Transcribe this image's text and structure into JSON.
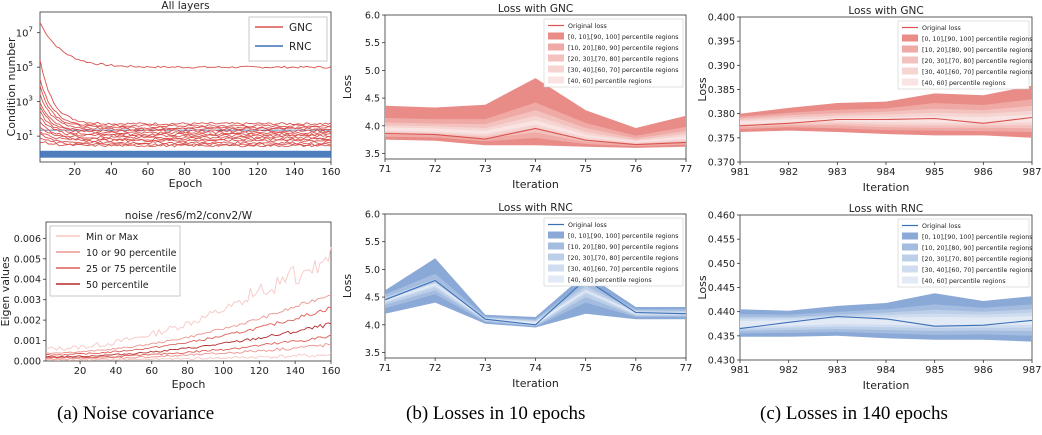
{
  "captions": [
    "(a) Noise covariance",
    "(b) Losses in 10 epochs",
    "(c) Losses in 140 epochs"
  ],
  "chart_data": [
    {
      "id": "cond",
      "type": "line",
      "title": "All layers",
      "xlabel": "Epoch",
      "ylabel": "Condition number",
      "xlim": [
        1,
        160
      ],
      "ylim_log10": [
        -0.5,
        8.2
      ],
      "yscale": "log",
      "xticks": [
        20,
        40,
        60,
        80,
        100,
        120,
        140,
        160
      ],
      "yticks": [
        {
          "exp": 1,
          "label": "10"
        },
        {
          "exp": 3,
          "label": "10"
        },
        {
          "exp": 5,
          "label": "10"
        },
        {
          "exp": 7,
          "label": "10"
        }
      ],
      "legend_position": "top-right",
      "legend": [
        {
          "name": "GNC",
          "color": "#d9534f"
        },
        {
          "name": "RNC",
          "color": "#3b6fb6"
        }
      ],
      "series_start_log10": [
        7.6,
        5.4,
        4.3,
        3.9,
        3.4,
        3.0,
        2.7,
        2.4,
        2.1,
        1.8,
        1.5,
        1.3,
        1.1,
        0.9,
        0.7
      ],
      "series_end_log10": [
        5.0,
        1.72,
        1.6,
        1.5,
        1.42,
        1.3,
        1.2,
        1.1,
        1.03,
        0.92,
        0.83,
        0.75,
        0.62,
        0.52,
        0.45
      ],
      "rnc_band_log10": [
        -0.25,
        0.15
      ],
      "rnc_line_log10": 1.35
    },
    {
      "id": "eig",
      "type": "line",
      "title": "noise /res6/m2/conv2/W",
      "xlabel": "Epoch",
      "ylabel": "Eigen values",
      "xlim": [
        1,
        160
      ],
      "ylim": [
        0,
        0.0068
      ],
      "xticks": [
        20,
        40,
        60,
        80,
        100,
        120,
        140,
        160
      ],
      "yticks": [
        "0.000",
        "0.001",
        "0.002",
        "0.003",
        "0.004",
        "0.005",
        "0.006"
      ],
      "legend_position": "top-left",
      "legend": [
        {
          "name": "Min or Max",
          "color": "#f6c8c4"
        },
        {
          "name": "10 or 90 percentile",
          "color": "#ec9590"
        },
        {
          "name": "25 or 75 percentile",
          "color": "#de5e58"
        },
        {
          "name": "50 percentile",
          "color": "#b52b2b"
        }
      ],
      "series_end_values": [
        0.0053,
        0.0033,
        0.0026,
        0.0018,
        0.0012,
        0.0008,
        0.0003
      ],
      "series_start_values": [
        0.0006,
        0.0004,
        0.0003,
        0.0002,
        0.00015,
        0.0001,
        5e-05
      ]
    },
    {
      "id": "gnc10",
      "type": "area",
      "title": "Loss with GNC",
      "xlabel": "Iteration",
      "ylabel": "Loss",
      "x": [
        71,
        72,
        73,
        74,
        75,
        76,
        77
      ],
      "xlim": [
        71,
        77
      ],
      "ylim": [
        3.4,
        6.0
      ],
      "yticks": [
        "3.5",
        "4.0",
        "4.5",
        "5.0",
        "5.5",
        "6.0"
      ],
      "color": "#d9534f",
      "band_colors": [
        "#e98b87",
        "#efaaa6",
        "#f3c2bf",
        "#f6d4d2",
        "#f9e4e3"
      ],
      "legend": [
        "Original loss",
        "[0, 10],[90, 100] percentile regions",
        "[10, 20],[80, 90] percentile regions",
        "[20, 30],[70, 80] percentile regions",
        "[30, 40],[60, 70] percentile regions",
        "[40, 60] percentile regions"
      ],
      "original": [
        3.86,
        3.84,
        3.76,
        3.95,
        3.74,
        3.66,
        3.7
      ],
      "bands": [
        {
          "low": [
            3.75,
            3.73,
            3.65,
            3.65,
            3.62,
            3.6,
            3.62
          ],
          "high": [
            4.36,
            4.33,
            4.38,
            4.86,
            4.28,
            3.96,
            4.18
          ]
        },
        {
          "low": [
            3.8,
            3.79,
            3.72,
            3.78,
            3.67,
            3.63,
            3.66
          ],
          "high": [
            4.14,
            4.12,
            4.12,
            4.42,
            4.05,
            3.82,
            3.98
          ]
        },
        {
          "low": [
            3.84,
            3.83,
            3.77,
            3.88,
            3.71,
            3.66,
            3.7
          ],
          "high": [
            4.06,
            4.04,
            4.03,
            4.28,
            3.96,
            3.77,
            3.91
          ]
        },
        {
          "low": [
            3.88,
            3.86,
            3.81,
            3.96,
            3.75,
            3.68,
            3.73
          ],
          "high": [
            4.01,
            3.99,
            3.96,
            4.18,
            3.89,
            3.74,
            3.86
          ]
        },
        {
          "low": [
            3.91,
            3.89,
            3.85,
            4.02,
            3.79,
            3.7,
            3.76
          ],
          "high": [
            3.97,
            3.95,
            3.91,
            4.1,
            3.84,
            3.72,
            3.81
          ]
        }
      ]
    },
    {
      "id": "rnc10",
      "type": "area",
      "title": "Loss with RNC",
      "xlabel": "Iteration",
      "ylabel": "Loss",
      "x": [
        71,
        72,
        73,
        74,
        75,
        76,
        77
      ],
      "xlim": [
        71,
        77
      ],
      "ylim": [
        3.4,
        6.0
      ],
      "yticks": [
        "3.5",
        "4.0",
        "4.5",
        "5.0",
        "5.5",
        "6.0"
      ],
      "color": "#3b6fb6",
      "band_colors": [
        "#8aa9d6",
        "#a3bce0",
        "#bccfe9",
        "#d0ddf0",
        "#e2eaf6"
      ],
      "legend": [
        "Original loss",
        "[0, 10],[90, 100] percentile regions",
        "[10, 20],[80, 90] percentile regions",
        "[20, 30],[70, 80] percentile regions",
        "[30, 40],[60, 70] percentile regions",
        "[40, 60] percentile regions"
      ],
      "original": [
        4.45,
        4.8,
        4.1,
        4.0,
        4.82,
        4.22,
        4.2
      ],
      "bands": [
        {
          "low": [
            4.2,
            4.4,
            4.02,
            3.95,
            4.2,
            4.1,
            4.1
          ],
          "high": [
            4.62,
            5.2,
            4.18,
            4.14,
            4.92,
            4.32,
            4.32
          ]
        },
        {
          "low": [
            4.3,
            4.55,
            4.05,
            3.97,
            4.4,
            4.14,
            4.14
          ],
          "high": [
            4.55,
            4.92,
            4.15,
            4.1,
            4.8,
            4.28,
            4.28
          ]
        },
        {
          "low": [
            4.36,
            4.62,
            4.07,
            3.98,
            4.5,
            4.16,
            4.16
          ],
          "high": [
            4.5,
            4.82,
            4.13,
            4.08,
            4.7,
            4.26,
            4.25
          ]
        },
        {
          "low": [
            4.4,
            4.68,
            4.08,
            3.99,
            4.57,
            4.18,
            4.18
          ],
          "high": [
            4.47,
            4.76,
            4.12,
            4.06,
            4.64,
            4.24,
            4.23
          ]
        },
        {
          "low": [
            4.42,
            4.71,
            4.09,
            4.0,
            4.6,
            4.19,
            4.19
          ],
          "high": [
            4.45,
            4.74,
            4.11,
            4.05,
            4.62,
            4.22,
            4.21
          ]
        }
      ]
    },
    {
      "id": "gnc140",
      "type": "area",
      "title": "Loss with GNC",
      "xlabel": "Iteration",
      "ylabel": "Loss",
      "x": [
        981,
        982,
        983,
        984,
        985,
        986,
        987
      ],
      "xlim": [
        981,
        987
      ],
      "ylim": [
        0.37,
        0.4
      ],
      "yticks": [
        "0.370",
        "0.375",
        "0.380",
        "0.385",
        "0.390",
        "0.395",
        "0.400"
      ],
      "color": "#d9534f",
      "band_colors": [
        "#e98b87",
        "#efaaa6",
        "#f3c2bf",
        "#f6d4d2",
        "#f9e4e3"
      ],
      "legend": [
        "Original loss",
        "[0, 10],[90, 100] percentile regions",
        "[10, 20],[80, 90] percentile regions",
        "[20, 30],[70, 80] percentile regions",
        "[30, 40],[60, 70] percentile regions",
        "[40, 60] percentile regions"
      ],
      "original": [
        0.3775,
        0.378,
        0.3788,
        0.3788,
        0.379,
        0.378,
        0.3792
      ],
      "bands": [
        {
          "low": [
            0.3762,
            0.3765,
            0.3762,
            0.3758,
            0.3755,
            0.3755,
            0.375
          ],
          "high": [
            0.38,
            0.3812,
            0.3822,
            0.3825,
            0.3842,
            0.3838,
            0.3858
          ]
        },
        {
          "low": [
            0.3768,
            0.3772,
            0.377,
            0.3766,
            0.3765,
            0.3764,
            0.3762
          ],
          "high": [
            0.3794,
            0.3802,
            0.3808,
            0.3811,
            0.3822,
            0.3818,
            0.383
          ]
        },
        {
          "low": [
            0.3772,
            0.3776,
            0.3776,
            0.3772,
            0.3771,
            0.3771,
            0.377
          ],
          "high": [
            0.379,
            0.3797,
            0.3801,
            0.3804,
            0.381,
            0.3807,
            0.3816
          ]
        },
        {
          "low": [
            0.3775,
            0.3779,
            0.378,
            0.3777,
            0.3776,
            0.3776,
            0.3776
          ],
          "high": [
            0.3787,
            0.3792,
            0.3796,
            0.3798,
            0.3802,
            0.38,
            0.3806
          ]
        },
        {
          "low": [
            0.3778,
            0.3782,
            0.3784,
            0.3782,
            0.3781,
            0.3781,
            0.3782
          ],
          "high": [
            0.3784,
            0.3788,
            0.3791,
            0.3792,
            0.3795,
            0.3793,
            0.3798
          ]
        }
      ]
    },
    {
      "id": "rnc140",
      "type": "area",
      "title": "Loss with RNC",
      "xlabel": "Iteration",
      "ylabel": "Loss",
      "x": [
        981,
        982,
        983,
        984,
        985,
        986,
        987
      ],
      "xlim": [
        981,
        987
      ],
      "ylim": [
        0.43,
        0.46
      ],
      "yticks": [
        "0.430",
        "0.435",
        "0.440",
        "0.445",
        "0.450",
        "0.455",
        "0.460"
      ],
      "color": "#3b6fb6",
      "band_colors": [
        "#8aa9d6",
        "#a3bce0",
        "#bccfe9",
        "#d0ddf0",
        "#e2eaf6"
      ],
      "legend": [
        "Original loss",
        "[0, 10],[90, 100] percentile regions",
        "[10, 20],[80, 90] percentile regions",
        "[20, 30],[70, 80] percentile regions",
        "[30, 40],[60, 70] percentile regions",
        "[40, 60] percentile regions"
      ],
      "original": [
        0.4365,
        0.4378,
        0.439,
        0.4385,
        0.437,
        0.4372,
        0.4382
      ],
      "bands": [
        {
          "low": [
            0.4348,
            0.4348,
            0.435,
            0.4345,
            0.4342,
            0.4342,
            0.4338
          ],
          "high": [
            0.4405,
            0.4402,
            0.4412,
            0.4418,
            0.4438,
            0.4422,
            0.4432
          ]
        },
        {
          "low": [
            0.4355,
            0.4356,
            0.4358,
            0.4355,
            0.4352,
            0.4353,
            0.435
          ],
          "high": [
            0.4395,
            0.4394,
            0.44,
            0.4405,
            0.4415,
            0.4408,
            0.4415
          ]
        },
        {
          "low": [
            0.436,
            0.4362,
            0.4364,
            0.4362,
            0.436,
            0.4361,
            0.436
          ],
          "high": [
            0.4389,
            0.4389,
            0.4394,
            0.4398,
            0.4404,
            0.44,
            0.4405
          ]
        },
        {
          "low": [
            0.4364,
            0.4367,
            0.4369,
            0.4368,
            0.4366,
            0.4367,
            0.4367
          ],
          "high": [
            0.4385,
            0.4386,
            0.439,
            0.4393,
            0.4396,
            0.4394,
            0.4398
          ]
        },
        {
          "low": [
            0.4368,
            0.4371,
            0.4374,
            0.4373,
            0.4371,
            0.4372,
            0.4373
          ],
          "high": [
            0.4381,
            0.4382,
            0.4386,
            0.4388,
            0.4389,
            0.4388,
            0.4391
          ]
        }
      ]
    }
  ]
}
